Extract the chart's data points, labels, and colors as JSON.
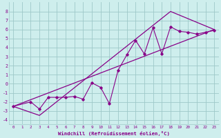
{
  "bg_color": "#ceeeed",
  "grid_color": "#9ec8c8",
  "line_color": "#880088",
  "xlabel": "Windchill (Refroidissement éolien,°C)",
  "xlim": [
    -0.5,
    23.5
  ],
  "ylim": [
    -4.5,
    9.0
  ],
  "xticks": [
    0,
    1,
    2,
    3,
    4,
    5,
    6,
    7,
    8,
    9,
    10,
    11,
    12,
    13,
    14,
    15,
    16,
    17,
    18,
    19,
    20,
    21,
    22,
    23
  ],
  "yticks": [
    -4,
    -3,
    -2,
    -1,
    0,
    1,
    2,
    3,
    4,
    5,
    6,
    7,
    8
  ],
  "line1_x": [
    0,
    2,
    3,
    4,
    5,
    6,
    7,
    8,
    9,
    10,
    11,
    12,
    13,
    14,
    15,
    16,
    17,
    18,
    19,
    20,
    21,
    22,
    23
  ],
  "line1_y": [
    -2.5,
    -2.0,
    -2.8,
    -1.5,
    -1.5,
    -1.5,
    -1.4,
    -1.7,
    0.1,
    -0.4,
    -2.2,
    1.5,
    3.2,
    4.8,
    3.3,
    6.2,
    3.3,
    6.3,
    5.8,
    5.7,
    5.5,
    5.7,
    5.9
  ],
  "line2_x": [
    0,
    3,
    18,
    23
  ],
  "line2_y": [
    -2.5,
    -3.5,
    8.0,
    6.0
  ],
  "line3_x": [
    0,
    23
  ],
  "line3_y": [
    -2.5,
    6.0
  ]
}
